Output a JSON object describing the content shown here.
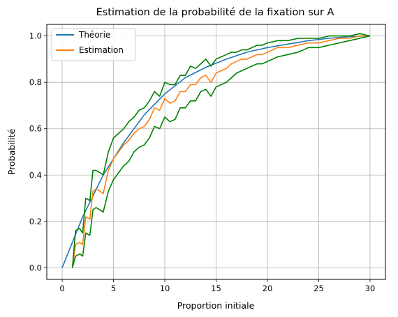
{
  "chart_data": {
    "type": "line",
    "title": "Estimation de la probabilité de la fixation sur A",
    "xlabel": "Proportion initiale",
    "ylabel": "Probabilité",
    "xlim": [
      -1.5,
      31.5
    ],
    "ylim": [
      -0.05,
      1.05
    ],
    "xticks": [
      0,
      5,
      10,
      15,
      20,
      25,
      30
    ],
    "yticks": [
      0.0,
      0.2,
      0.4,
      0.6,
      0.8,
      1.0
    ],
    "xtick_labels": [
      "0",
      "5",
      "10",
      "15",
      "20",
      "25",
      "30"
    ],
    "ytick_labels": [
      "0.0",
      "0.2",
      "0.4",
      "0.6",
      "0.8",
      "1.0"
    ],
    "grid": true,
    "legend_position": "top-left",
    "colors": {
      "theory": "#1f77b4",
      "estimate": "#ff7f0e",
      "bounds": "#008000"
    },
    "legend": [
      {
        "label": "Théorie",
        "color": "#1f77b4"
      },
      {
        "label": "Estimation",
        "color": "#ff7f0e"
      }
    ],
    "series": [
      {
        "name": "Théorie",
        "color": "#1f77b4",
        "x": [
          0,
          2,
          4,
          6,
          8,
          10,
          12,
          14,
          16,
          18,
          20,
          22,
          24,
          26,
          28,
          30
        ],
        "values": [
          0.0,
          0.22,
          0.4,
          0.54,
          0.66,
          0.75,
          0.82,
          0.865,
          0.9,
          0.93,
          0.95,
          0.965,
          0.98,
          0.99,
          0.997,
          1.0
        ]
      },
      {
        "name": "Estimation",
        "color": "#ff7f0e",
        "x": [
          1,
          1.3,
          1.7,
          2.0,
          2.3,
          2.7,
          3.0,
          3.3,
          3.7,
          4.0,
          4.5,
          5.0,
          5.5,
          6.0,
          6.5,
          7.0,
          7.5,
          8.0,
          8.5,
          9.0,
          9.5,
          10.0,
          10.5,
          11.0,
          11.5,
          12.0,
          12.5,
          13.0,
          13.5,
          14.0,
          14.5,
          15.0,
          15.5,
          16.0,
          16.5,
          17.0,
          17.5,
          18.0,
          18.5,
          19.0,
          19.5,
          20.0,
          21.0,
          22.0,
          23.0,
          24.0,
          25.0,
          26.0,
          27.0,
          28.0,
          29.0,
          30.0
        ],
        "values": [
          0.0,
          0.1,
          0.11,
          0.1,
          0.22,
          0.21,
          0.33,
          0.34,
          0.33,
          0.32,
          0.42,
          0.47,
          0.5,
          0.53,
          0.55,
          0.58,
          0.6,
          0.61,
          0.64,
          0.69,
          0.68,
          0.73,
          0.71,
          0.72,
          0.76,
          0.76,
          0.79,
          0.79,
          0.82,
          0.83,
          0.8,
          0.84,
          0.85,
          0.86,
          0.88,
          0.89,
          0.9,
          0.9,
          0.91,
          0.92,
          0.92,
          0.93,
          0.95,
          0.95,
          0.96,
          0.97,
          0.97,
          0.98,
          0.99,
          0.99,
          1.0,
          1.0
        ]
      },
      {
        "name": "",
        "color": "#008000",
        "x": [
          1,
          1.3,
          1.7,
          2.0,
          2.3,
          2.7,
          3.0,
          3.3,
          3.7,
          4.0,
          4.5,
          5.0,
          5.5,
          6.0,
          6.5,
          7.0,
          7.5,
          8.0,
          8.5,
          9.0,
          9.5,
          10.0,
          10.5,
          11.0,
          11.5,
          12.0,
          12.5,
          13.0,
          13.5,
          14.0,
          14.5,
          15.0,
          15.5,
          16.0,
          16.5,
          17.0,
          17.5,
          18.0,
          18.5,
          19.0,
          19.5,
          20.0,
          21.0,
          22.0,
          23.0,
          24.0,
          25.0,
          26.0,
          27.0,
          28.0,
          29.0,
          30.0
        ],
        "values": [
          0.0,
          0.16,
          0.17,
          0.15,
          0.3,
          0.29,
          0.42,
          0.42,
          0.41,
          0.4,
          0.5,
          0.56,
          0.58,
          0.6,
          0.63,
          0.65,
          0.68,
          0.69,
          0.72,
          0.76,
          0.74,
          0.8,
          0.79,
          0.79,
          0.83,
          0.83,
          0.87,
          0.86,
          0.88,
          0.9,
          0.87,
          0.9,
          0.91,
          0.92,
          0.93,
          0.93,
          0.94,
          0.94,
          0.95,
          0.96,
          0.96,
          0.97,
          0.98,
          0.98,
          0.99,
          0.99,
          0.99,
          1.0,
          1.0,
          1.0,
          1.01,
          1.0
        ]
      },
      {
        "name": "",
        "color": "#008000",
        "x": [
          1,
          1.3,
          1.7,
          2.0,
          2.3,
          2.7,
          3.0,
          3.3,
          3.7,
          4.0,
          4.5,
          5.0,
          5.5,
          6.0,
          6.5,
          7.0,
          7.5,
          8.0,
          8.5,
          9.0,
          9.5,
          10.0,
          10.5,
          11.0,
          11.5,
          12.0,
          12.5,
          13.0,
          13.5,
          14.0,
          14.5,
          15.0,
          15.5,
          16.0,
          16.5,
          17.0,
          17.5,
          18.0,
          18.5,
          19.0,
          19.5,
          20.0,
          21.0,
          22.0,
          23.0,
          24.0,
          25.0,
          26.0,
          27.0,
          28.0,
          29.0,
          30.0
        ],
        "values": [
          0.0,
          0.05,
          0.06,
          0.05,
          0.15,
          0.14,
          0.25,
          0.26,
          0.25,
          0.24,
          0.33,
          0.38,
          0.41,
          0.44,
          0.46,
          0.5,
          0.52,
          0.53,
          0.56,
          0.61,
          0.6,
          0.65,
          0.63,
          0.64,
          0.69,
          0.69,
          0.72,
          0.72,
          0.76,
          0.77,
          0.74,
          0.78,
          0.79,
          0.8,
          0.82,
          0.84,
          0.85,
          0.86,
          0.87,
          0.88,
          0.88,
          0.89,
          0.91,
          0.92,
          0.93,
          0.95,
          0.95,
          0.96,
          0.97,
          0.98,
          0.99,
          1.0
        ]
      }
    ]
  }
}
